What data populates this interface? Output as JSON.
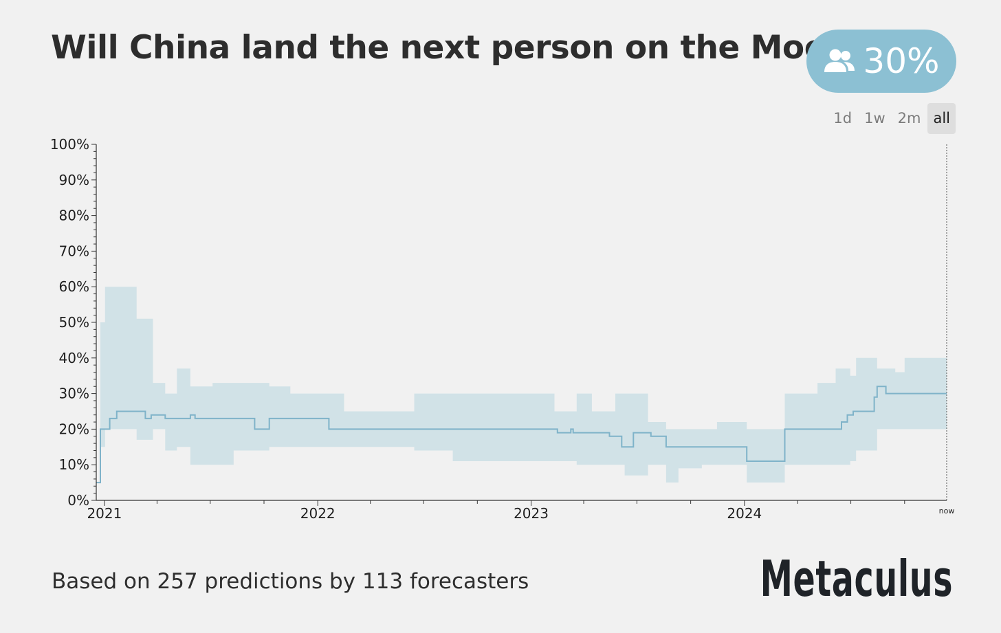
{
  "header": {
    "title": "Will China land the next person on the Moon?",
    "community_prediction": "30%",
    "community_icon": "users-icon",
    "accent_color": "#8cc0d3"
  },
  "range_tabs": [
    {
      "label": "1d",
      "active": false
    },
    {
      "label": "1w",
      "active": false
    },
    {
      "label": "2m",
      "active": false
    },
    {
      "label": "all",
      "active": true
    }
  ],
  "footer": {
    "summary": "Based on 257 predictions by 113 forecasters",
    "brand": "Metaculus"
  },
  "chart_data": {
    "type": "line",
    "title": "",
    "xlabel": "",
    "ylabel": "",
    "ylim": [
      0,
      100
    ],
    "xlim": [
      "2020-12-18",
      "2024-12-12"
    ],
    "y_ticks": [
      "0%",
      "10%",
      "20%",
      "30%",
      "40%",
      "50%",
      "60%",
      "70%",
      "80%",
      "90%",
      "100%"
    ],
    "x_ticks": [
      {
        "label": "2021",
        "date": "2021-01-01"
      },
      {
        "label": "2022",
        "date": "2022-01-01"
      },
      {
        "label": "2023",
        "date": "2023-01-01"
      },
      {
        "label": "2024",
        "date": "2024-01-01"
      },
      {
        "label": "now",
        "date": "2024-12-12"
      }
    ],
    "line_color": "#7fb3c9",
    "band_color": "#d1e2e7",
    "series": [
      {
        "style": "step",
        "points": [
          [
            "2020-12-18",
            5
          ],
          [
            "2020-12-25",
            20
          ],
          [
            "2021-01-10",
            23
          ],
          [
            "2021-01-22",
            25
          ],
          [
            "2021-03-12",
            23
          ],
          [
            "2021-03-22",
            24
          ],
          [
            "2021-04-15",
            23
          ],
          [
            "2021-05-28",
            24
          ],
          [
            "2021-06-05",
            23
          ],
          [
            "2021-09-15",
            20
          ],
          [
            "2021-10-10",
            23
          ],
          [
            "2022-01-20",
            20
          ],
          [
            "2023-02-15",
            19
          ],
          [
            "2023-03-10",
            20
          ],
          [
            "2023-03-14",
            19
          ],
          [
            "2023-05-15",
            18
          ],
          [
            "2023-06-05",
            15
          ],
          [
            "2023-06-25",
            19
          ],
          [
            "2023-07-25",
            18
          ],
          [
            "2023-08-20",
            15
          ],
          [
            "2024-01-05",
            11
          ],
          [
            "2024-03-10",
            20
          ],
          [
            "2024-06-15",
            22
          ],
          [
            "2024-06-25",
            24
          ],
          [
            "2024-07-05",
            25
          ],
          [
            "2024-08-10",
            29
          ],
          [
            "2024-08-15",
            32
          ],
          [
            "2024-08-30",
            30
          ],
          [
            "2024-12-12",
            30
          ]
        ]
      }
    ],
    "band": {
      "style": "step",
      "points": [
        [
          "2020-12-18",
          5,
          5
        ],
        [
          "2020-12-25",
          15,
          50
        ],
        [
          "2021-01-02",
          20,
          60
        ],
        [
          "2021-02-25",
          17,
          51
        ],
        [
          "2021-03-25",
          20,
          33
        ],
        [
          "2021-04-15",
          14,
          30
        ],
        [
          "2021-05-05",
          15,
          37
        ],
        [
          "2021-05-28",
          10,
          32
        ],
        [
          "2021-07-05",
          10,
          33
        ],
        [
          "2021-08-10",
          14,
          33
        ],
        [
          "2021-10-10",
          15,
          32
        ],
        [
          "2021-11-15",
          15,
          30
        ],
        [
          "2022-01-20",
          15,
          30
        ],
        [
          "2022-02-15",
          15,
          25
        ],
        [
          "2022-06-15",
          14,
          30
        ],
        [
          "2022-07-15",
          14,
          30
        ],
        [
          "2022-08-20",
          11,
          30
        ],
        [
          "2023-02-10",
          11,
          25
        ],
        [
          "2023-03-20",
          10,
          30
        ],
        [
          "2023-04-15",
          10,
          25
        ],
        [
          "2023-05-25",
          10,
          30
        ],
        [
          "2023-06-10",
          7,
          30
        ],
        [
          "2023-07-20",
          10,
          22
        ],
        [
          "2023-08-20",
          5,
          20
        ],
        [
          "2023-09-10",
          9,
          20
        ],
        [
          "2023-10-20",
          10,
          20
        ],
        [
          "2023-11-15",
          10,
          22
        ],
        [
          "2024-01-05",
          5,
          20
        ],
        [
          "2024-03-10",
          10,
          30
        ],
        [
          "2024-05-05",
          10,
          33
        ],
        [
          "2024-06-05",
          10,
          37
        ],
        [
          "2024-06-30",
          11,
          35
        ],
        [
          "2024-07-10",
          14,
          40
        ],
        [
          "2024-08-15",
          20,
          37
        ],
        [
          "2024-09-15",
          20,
          36
        ],
        [
          "2024-10-01",
          20,
          40
        ],
        [
          "2024-12-12",
          20,
          40
        ]
      ]
    }
  }
}
